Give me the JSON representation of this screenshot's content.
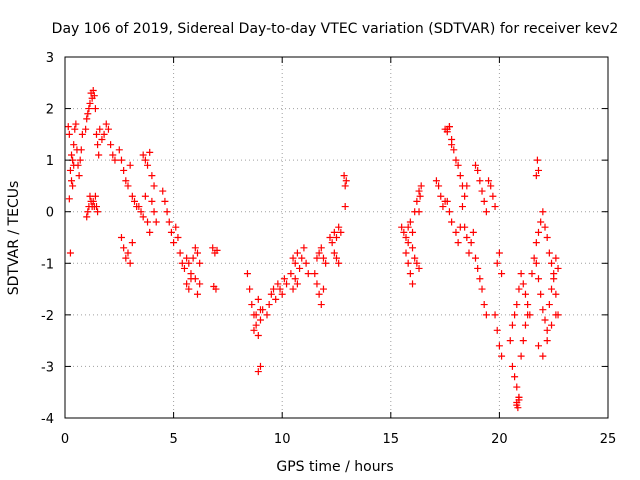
{
  "chart_data": {
    "type": "scatter",
    "title": "Day 106 of 2019, Sidereal Day-to-day VTEC variation (SDTVAR) for receiver kev2",
    "xlabel": "GPS time / hours",
    "ylabel": "SDTVAR / TECUs",
    "xlim": [
      0,
      25
    ],
    "ylim": [
      -4,
      3
    ],
    "xticks": [
      "0",
      "5",
      "10",
      "15",
      "20",
      "25"
    ],
    "yticks": [
      "-4",
      "-3",
      "-2",
      "-1",
      "0",
      "1",
      "2",
      "3"
    ],
    "grid": true,
    "marker": "+",
    "color": "#ff0000",
    "series": [
      {
        "name": "SDTVAR",
        "x": [
          0.15,
          0.2,
          0.25,
          0.3,
          0.35,
          0.4,
          0.45,
          0.5,
          0.55,
          0.6,
          0.65,
          0.7,
          0.75,
          0.8,
          0.2,
          0.25,
          0.3,
          0.35,
          0.4,
          0.95,
          1.0,
          1.05,
          1.1,
          1.15,
          1.2,
          1.25,
          1.3,
          1.35,
          1.4,
          1.45,
          1.5,
          1.55,
          1.6,
          1.7,
          1.8,
          1.9,
          2.0,
          2.1,
          2.2,
          2.3,
          1.0,
          1.05,
          1.1,
          1.15,
          1.2,
          1.25,
          1.3,
          1.35,
          1.4,
          1.45,
          1.5,
          2.5,
          2.6,
          2.7,
          2.8,
          2.9,
          3.0,
          3.1,
          3.2,
          3.3,
          2.6,
          2.7,
          2.8,
          2.9,
          3.0,
          3.1,
          3.4,
          3.5,
          3.6,
          3.7,
          3.8,
          3.9,
          4.0,
          4.1,
          4.2,
          3.6,
          3.7,
          3.8,
          3.9,
          4.0,
          4.1,
          4.5,
          4.6,
          4.7,
          4.8,
          4.9,
          5.0,
          5.1,
          5.2,
          5.3,
          5.4,
          5.5,
          5.6,
          5.7,
          5.8,
          5.9,
          6.0,
          6.1,
          6.2,
          5.6,
          5.7,
          5.8,
          6.0,
          6.1,
          6.2,
          6.8,
          6.9,
          7.0,
          6.85,
          6.95,
          8.4,
          8.5,
          8.6,
          8.7,
          8.8,
          8.9,
          9.0,
          9.1,
          8.7,
          8.8,
          8.9,
          9.0,
          8.9,
          9.0,
          9.3,
          9.4,
          9.5,
          9.6,
          9.7,
          9.8,
          9.9,
          10.0,
          10.1,
          10.2,
          10.4,
          10.5,
          10.6,
          10.7,
          10.8,
          10.9,
          11.0,
          11.1,
          11.2,
          10.5,
          10.6,
          10.7,
          11.5,
          11.6,
          11.7,
          11.8,
          11.9,
          12.0,
          11.6,
          11.7,
          11.8,
          11.9,
          12.2,
          12.3,
          12.4,
          12.5,
          12.6,
          12.7,
          12.4,
          12.5,
          12.6,
          12.85,
          12.9,
          12.95,
          12.9,
          15.5,
          15.6,
          15.7,
          15.8,
          15.9,
          16.0,
          16.1,
          16.2,
          16.3,
          15.7,
          15.8,
          15.9,
          16.0,
          16.1,
          16.2,
          16.3,
          15.8,
          16.0,
          16.3,
          16.35,
          16.4,
          17.1,
          17.2,
          17.3,
          17.4,
          17.5,
          17.6,
          17.7,
          17.8,
          17.9,
          18.0,
          18.1,
          18.2,
          18.3,
          17.6,
          17.7,
          17.8,
          18.0,
          18.1,
          18.2,
          18.3,
          18.4,
          18.5,
          17.5,
          17.6,
          17.7,
          17.8,
          18.4,
          18.5,
          18.6,
          18.7,
          18.8,
          18.9,
          19.0,
          19.1,
          19.2,
          19.3,
          19.4,
          19.5,
          19.6,
          19.7,
          19.8,
          18.9,
          19.0,
          19.1,
          19.2,
          19.3,
          19.4,
          19.8,
          19.9,
          20.0,
          20.1,
          19.9,
          20.0,
          20.1,
          20.5,
          20.6,
          20.7,
          20.8,
          20.9,
          21.0,
          21.1,
          21.2,
          21.3,
          21.4,
          21.5,
          21.6,
          21.7,
          21.8,
          21.9,
          22.0,
          22.1,
          22.2,
          22.3,
          22.4,
          22.5,
          22.6,
          22.7,
          20.6,
          20.7,
          20.8,
          20.9,
          21.0,
          21.1,
          21.2,
          21.3,
          21.7,
          21.8,
          21.9,
          22.0,
          22.1,
          22.2,
          22.3,
          22.4,
          22.5,
          22.6,
          22.7,
          21.8,
          22.0,
          22.2,
          22.4,
          22.6,
          20.8,
          20.85,
          20.9,
          20.8,
          20.9,
          21.75,
          21.8,
          21.7
        ],
        "y": [
          1.65,
          1.5,
          0.8,
          0.6,
          1.0,
          1.3,
          1.6,
          1.7,
          1.2,
          0.9,
          0.7,
          1.0,
          1.2,
          1.5,
          0.25,
          -0.8,
          1.1,
          0.5,
          0.9,
          1.6,
          1.8,
          1.9,
          2.0,
          2.1,
          2.3,
          2.2,
          2.35,
          2.25,
          2.0,
          1.5,
          1.3,
          1.1,
          1.6,
          1.4,
          1.5,
          1.7,
          1.6,
          1.3,
          1.1,
          1.0,
          -0.1,
          0.0,
          0.1,
          0.3,
          0.2,
          0.1,
          0.2,
          0.1,
          0.3,
          0.1,
          0.0,
          1.2,
          1.0,
          0.8,
          0.6,
          0.5,
          0.9,
          0.3,
          0.2,
          0.1,
          -0.5,
          -0.7,
          -0.9,
          -0.8,
          -1.0,
          -0.6,
          0.1,
          0.0,
          -0.1,
          0.3,
          -0.2,
          -0.4,
          0.2,
          0.0,
          -0.2,
          1.1,
          1.0,
          0.9,
          1.15,
          0.7,
          0.5,
          0.4,
          0.2,
          0.0,
          -0.2,
          -0.4,
          -0.6,
          -0.3,
          -0.5,
          -0.8,
          -1.0,
          -1.1,
          -0.9,
          -1.0,
          -1.2,
          -0.9,
          -0.7,
          -0.8,
          -1.0,
          -1.4,
          -1.5,
          -1.3,
          -1.3,
          -1.6,
          -1.4,
          -0.7,
          -0.8,
          -0.75,
          -1.45,
          -1.5,
          -1.2,
          -1.5,
          -1.8,
          -2.0,
          -2.2,
          -2.4,
          -2.1,
          -1.9,
          -2.3,
          -2.0,
          -1.7,
          -1.9,
          -3.1,
          -3.0,
          -2.0,
          -1.8,
          -1.6,
          -1.5,
          -1.7,
          -1.4,
          -1.5,
          -1.6,
          -1.3,
          -1.4,
          -1.2,
          -0.9,
          -1.0,
          -0.8,
          -1.1,
          -0.9,
          -0.7,
          -1.0,
          -1.2,
          -1.5,
          -1.3,
          -1.4,
          -1.2,
          -1.4,
          -1.6,
          -1.8,
          -1.5,
          -1.0,
          -0.9,
          -0.8,
          -0.7,
          -0.9,
          -0.5,
          -0.6,
          -0.4,
          -0.5,
          -0.3,
          -0.4,
          -0.8,
          -0.9,
          -1.0,
          0.7,
          0.5,
          0.6,
          0.1,
          -0.3,
          -0.4,
          -0.5,
          -0.3,
          -0.2,
          -0.4,
          0.0,
          0.2,
          0.4,
          -0.8,
          -1.0,
          -1.2,
          -1.4,
          -0.9,
          -1.0,
          -1.1,
          -0.6,
          -0.7,
          0.0,
          0.3,
          0.5,
          0.6,
          0.5,
          0.3,
          0.1,
          0.2,
          1.6,
          1.65,
          1.4,
          1.2,
          1.0,
          0.9,
          0.7,
          0.5,
          0.2,
          0.0,
          -0.2,
          -0.4,
          -0.6,
          -0.3,
          0.1,
          0.3,
          0.5,
          1.6,
          1.55,
          1.65,
          1.3,
          -0.3,
          -0.5,
          -0.8,
          -0.6,
          -0.4,
          0.9,
          0.8,
          0.6,
          0.4,
          0.2,
          0.0,
          0.6,
          0.5,
          0.3,
          0.1,
          -0.9,
          -1.1,
          -1.3,
          -1.5,
          -1.8,
          -2.0,
          -2.0,
          -2.3,
          -2.6,
          -2.8,
          -1.0,
          -0.8,
          -1.2,
          -2.5,
          -2.2,
          -2.0,
          -1.8,
          -1.5,
          -1.2,
          -1.4,
          -1.6,
          -1.8,
          -2.0,
          -1.2,
          -0.9,
          -0.6,
          -0.4,
          -0.2,
          0.0,
          -0.3,
          -0.5,
          -0.8,
          -1.0,
          -1.3,
          -1.6,
          -2.0,
          -3.0,
          -3.2,
          -3.4,
          -3.6,
          -2.8,
          -2.5,
          -2.2,
          -2.0,
          -1.0,
          -1.3,
          -1.6,
          -1.9,
          -2.1,
          -2.3,
          -1.8,
          -1.5,
          -1.2,
          -0.9,
          -1.1,
          -2.6,
          -2.8,
          -2.5,
          -2.2,
          -2.0,
          -3.7,
          -3.8,
          -3.6,
          -3.75,
          -3.65,
          1.0,
          0.8,
          0.7
        ]
      }
    ]
  }
}
